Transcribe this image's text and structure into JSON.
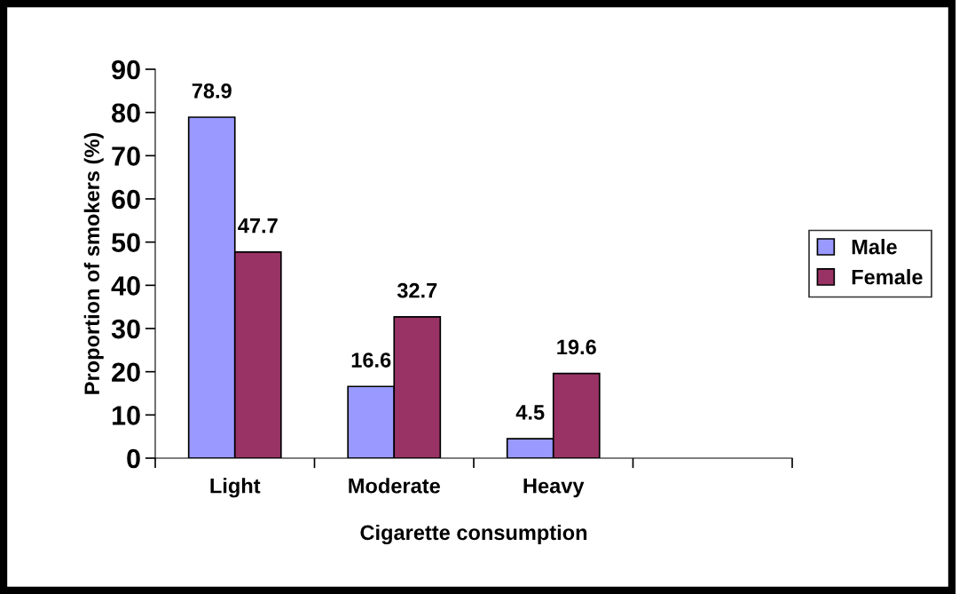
{
  "chart_data": {
    "type": "bar",
    "xlabel": "Cigarette consumption",
    "ylabel": "Proportion of smokers (%)",
    "categories": [
      "Light",
      "Moderate",
      "Heavy",
      null
    ],
    "series": [
      {
        "name": "Male",
        "color": "#9999ff",
        "values": [
          78.9,
          16.6,
          4.5,
          null
        ]
      },
      {
        "name": "Female",
        "color": "#993366",
        "values": [
          47.7,
          32.7,
          19.6,
          null
        ]
      }
    ],
    "ylim": [
      0,
      90
    ],
    "yticks": [
      0,
      10,
      20,
      30,
      40,
      50,
      60,
      70,
      80,
      90
    ],
    "data_labels": true,
    "grid": false,
    "legend": "right"
  }
}
